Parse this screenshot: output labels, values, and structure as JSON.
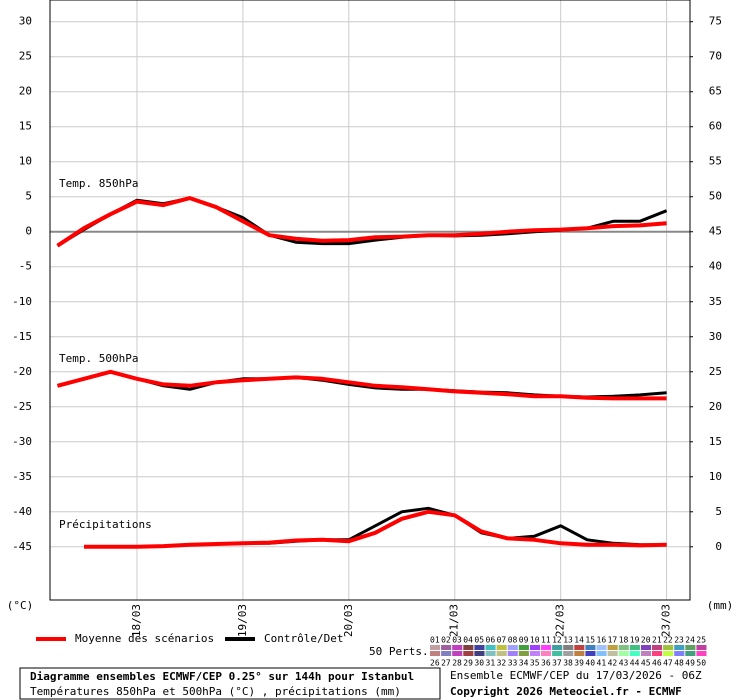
{
  "chart_data": {
    "type": "line",
    "panels": [
      "Temp. 850hPa",
      "Temp. 500hPa",
      "Précipitations"
    ],
    "ylabel": "(°C)",
    "y2label": "(mm)",
    "x": [
      6,
      12,
      18,
      24,
      30,
      36,
      42,
      48,
      54,
      60,
      66,
      72,
      78,
      84,
      90,
      96,
      102,
      108,
      114,
      120,
      126,
      132,
      138,
      144
    ],
    "xlim": [
      4.3,
      149.3
    ],
    "xticks": [
      {
        "value": 24,
        "label": "18/03"
      },
      {
        "value": 48,
        "label": "19/03"
      },
      {
        "value": 72,
        "label": "20/03"
      },
      {
        "value": 96,
        "label": "21/03"
      },
      {
        "value": 120,
        "label": "22/03"
      },
      {
        "value": 144,
        "label": "23/03"
      }
    ],
    "ylim": [
      -52.6,
      33.1
    ],
    "yticks": [
      30,
      25,
      20,
      15,
      10,
      5,
      0,
      -5,
      -10,
      -15,
      -20,
      -25,
      -30,
      -35,
      -40,
      -45
    ],
    "y2lim": [
      -7.6,
      78.1
    ],
    "y2ticks": [
      75,
      70,
      65,
      60,
      55,
      50,
      45,
      40,
      35,
      30,
      25,
      20,
      15,
      10,
      5,
      0
    ],
    "grid": true,
    "series": [
      {
        "name": "Contrôle/Det",
        "color": "#000000",
        "temp850": [
          -2,
          0.3,
          2.5,
          4.5,
          4,
          4.8,
          3.5,
          2,
          -0.5,
          -1.5,
          -1.7,
          -1.7,
          -1.2,
          -0.8,
          -0.5,
          -0.6,
          -0.5,
          -0.3,
          0,
          0.2,
          0.5,
          1.5,
          1.5,
          3
        ],
        "temp500": [
          -22,
          -21,
          -20,
          -21,
          -22,
          -22.5,
          -21.5,
          -21,
          -21,
          -20.8,
          -21.2,
          -21.8,
          -22.3,
          -22.5,
          -22.5,
          -22.7,
          -22.9,
          -23,
          -23.3,
          -23.5,
          -23.6,
          -23.5,
          -23.3,
          -23
        ],
        "precip": [
          null,
          0,
          0,
          0,
          0.1,
          0.3,
          0.4,
          0.5,
          0.5,
          0.8,
          1,
          1,
          3,
          5,
          5.5,
          4.5,
          2,
          1.2,
          1.5,
          3,
          1,
          0.5,
          0.3,
          0.3
        ]
      },
      {
        "name": "Moyenne des scénarios",
        "color": "#ff0000",
        "temp850": [
          -2,
          0.5,
          2.5,
          4.3,
          3.8,
          4.8,
          3.5,
          1.5,
          -0.5,
          -1,
          -1.3,
          -1.2,
          -0.8,
          -0.7,
          -0.5,
          -0.5,
          -0.3,
          0,
          0.2,
          0.3,
          0.5,
          0.8,
          0.9,
          1.2
        ],
        "temp500": [
          -22,
          -21,
          -20,
          -21,
          -21.8,
          -22,
          -21.5,
          -21.2,
          -21,
          -20.8,
          -21,
          -21.5,
          -22,
          -22.2,
          -22.5,
          -22.8,
          -23,
          -23.2,
          -23.5,
          -23.5,
          -23.7,
          -23.8,
          -23.8,
          -23.8
        ],
        "precip": [
          null,
          0,
          0,
          0,
          0.1,
          0.3,
          0.4,
          0.5,
          0.6,
          0.9,
          1,
          0.8,
          2,
          4,
          5,
          4.5,
          2.2,
          1.2,
          1,
          0.5,
          0.3,
          0.3,
          0.2,
          0.3
        ]
      }
    ],
    "perts_label": "50 Perts.",
    "members": [
      "01",
      "02",
      "03",
      "04",
      "05",
      "06",
      "07",
      "08",
      "09",
      "10",
      "11",
      "12",
      "13",
      "14",
      "15",
      "16",
      "17",
      "18",
      "19",
      "20",
      "21",
      "22",
      "23",
      "24",
      "25",
      "26",
      "27",
      "28",
      "29",
      "30",
      "31",
      "32",
      "33",
      "34",
      "35",
      "36",
      "37",
      "38",
      "39",
      "40",
      "41",
      "42",
      "43",
      "44",
      "45",
      "46",
      "47",
      "48",
      "49",
      "50"
    ],
    "member_colors": [
      "#c0a0a0",
      "#a060a0",
      "#c040c0",
      "#804040",
      "#4040a0",
      "#40c0c0",
      "#c0c040",
      "#a0a0ff",
      "#40a040",
      "#a040ff",
      "#ff40ff",
      "#40a0a0",
      "#808080",
      "#c04040",
      "#4080c0",
      "#a0c0ff",
      "#c0a040",
      "#80c080",
      "#40c080",
      "#8040c0",
      "#c04080",
      "#a0c040",
      "#40a0c0",
      "#60a060",
      "#c040a0",
      "#c08080",
      "#8080c0",
      "#c040c0",
      "#a04040",
      "#404080",
      "#80c0c0",
      "#c0c080",
      "#a080ff",
      "#80a040",
      "#c080ff",
      "#ff80c0",
      "#40c0a0",
      "#a0a0a0",
      "#c08040",
      "#4040c0",
      "#80c0ff",
      "#c0c0a0",
      "#a0ffa0",
      "#40ffc0",
      "#c080c0",
      "#ff4080",
      "#c0ff40",
      "#8080ff",
      "#40a080",
      "#ff40c0"
    ],
    "title": "Diagramme ensembles ECMWF/CEP 0.25° sur 144h pour Istanbul",
    "subtitle": "Températures 850hPa et 500hPa (°C) , précipitations (mm)",
    "run": "Ensemble ECMWF/CEP du 17/03/2026 - 06Z",
    "copyright": "Copyright 2026 Meteociel.fr - ECMWF"
  }
}
